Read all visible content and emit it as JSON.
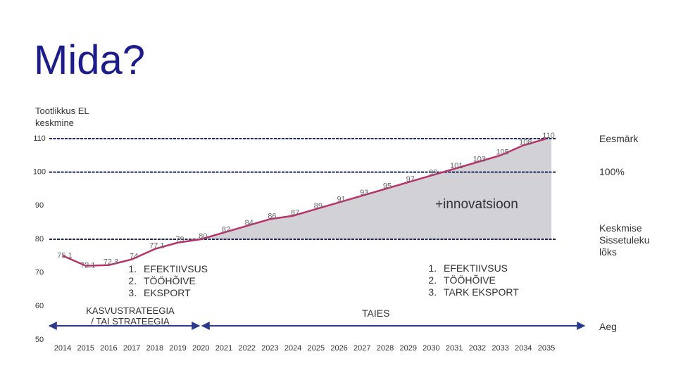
{
  "title": "Mida?",
  "chart_data": {
    "type": "line",
    "ylabel": "Tootlikkus EL keskmine",
    "categories": [
      "2014",
      "2015",
      "2016",
      "2017",
      "2018",
      "2019",
      "2020",
      "2021",
      "2022",
      "2023",
      "2024",
      "2025",
      "2026",
      "2027",
      "2028",
      "2029",
      "2030",
      "2031",
      "2032",
      "2033",
      "2034",
      "2035"
    ],
    "series": [
      {
        "color": "#b8336a",
        "values": [
          75.1,
          72.1,
          72.3,
          74,
          77.1,
          79,
          80,
          82,
          84,
          86,
          87,
          89,
          91,
          93,
          95,
          97,
          99,
          101,
          103,
          105,
          108,
          110
        ]
      }
    ],
    "ylim": [
      50,
      110
    ],
    "yticks": [
      50,
      60,
      70,
      80,
      90,
      100,
      110
    ],
    "reference_lines": [
      {
        "value": 110,
        "label": "Eesmärk"
      },
      {
        "value": 100,
        "label": "100%"
      },
      {
        "value": 80,
        "label": "Keskmise Sissetuleku lõks"
      }
    ],
    "annotation": "+innovatsioon",
    "phases": [
      {
        "items": [
          "EFEKTIIVSUS",
          "TÖÖHÕIVE",
          "EKSPORT"
        ],
        "caption": "KASVUSTRATEEGIA / TAI STRATEEGIA"
      },
      {
        "items": [
          "EFEKTIIVSUS",
          "TÖÖHÕIVE",
          "TARK EKSPORT"
        ],
        "caption": "TAIES"
      }
    ],
    "xlabel": "Aeg"
  }
}
